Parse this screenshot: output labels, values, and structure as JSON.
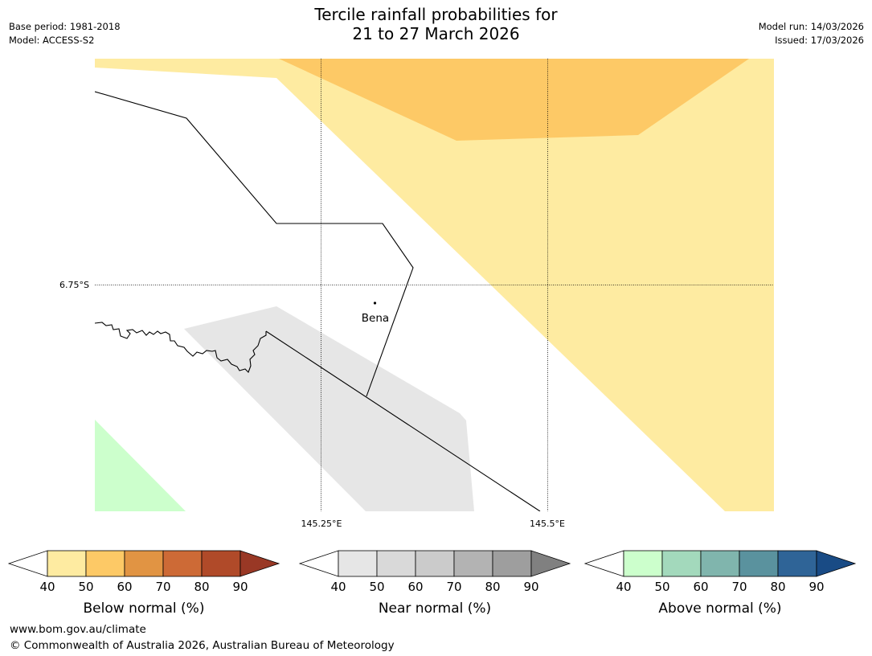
{
  "header": {
    "title_line1": "Tercile rainfall probabilities for",
    "title_line2": "21 to 27 March 2026",
    "base_period": "Base period: 1981-2018",
    "model": "Model: ACCESS-S2",
    "model_run": "Model run: 14/03/2026",
    "issued": "Issued: 17/03/2026"
  },
  "map": {
    "lat_label": "6.75°S",
    "lon_labels": [
      "145.25°E",
      "145.5°E"
    ],
    "place_label": "Bena",
    "colors": {
      "below_50_60": "#fdc966",
      "below_40_50": "#feeba1",
      "near_40_50": "#e6e6e6",
      "above_40_50": "#ccffcc",
      "boundary": "#000000",
      "gridline": "#000000"
    }
  },
  "legends": [
    {
      "id": "below",
      "label": "Below normal (%)",
      "ticks": [
        "40",
        "50",
        "60",
        "70",
        "80",
        "90"
      ],
      "colors": [
        "#ffffff",
        "#feeba1",
        "#fdc966",
        "#e19443",
        "#cd6a36",
        "#b04a29",
        "#993825"
      ]
    },
    {
      "id": "near",
      "label": "Near normal (%)",
      "ticks": [
        "40",
        "50",
        "60",
        "70",
        "80",
        "90"
      ],
      "colors": [
        "#ffffff",
        "#e6e6e6",
        "#d9d9d9",
        "#cbcbcb",
        "#b3b3b3",
        "#9e9e9e",
        "#808080"
      ]
    },
    {
      "id": "above",
      "label": "Above normal (%)",
      "ticks": [
        "40",
        "50",
        "60",
        "70",
        "80",
        "90"
      ],
      "colors": [
        "#ffffff",
        "#ccffcc",
        "#a3d9bc",
        "#80b5ad",
        "#5a929e",
        "#2f6497",
        "#194b85"
      ]
    }
  ],
  "footer": {
    "url": "www.bom.gov.au/climate",
    "copyright": "© Commonwealth of Australia 2026, Australian Bureau of Meteorology"
  }
}
